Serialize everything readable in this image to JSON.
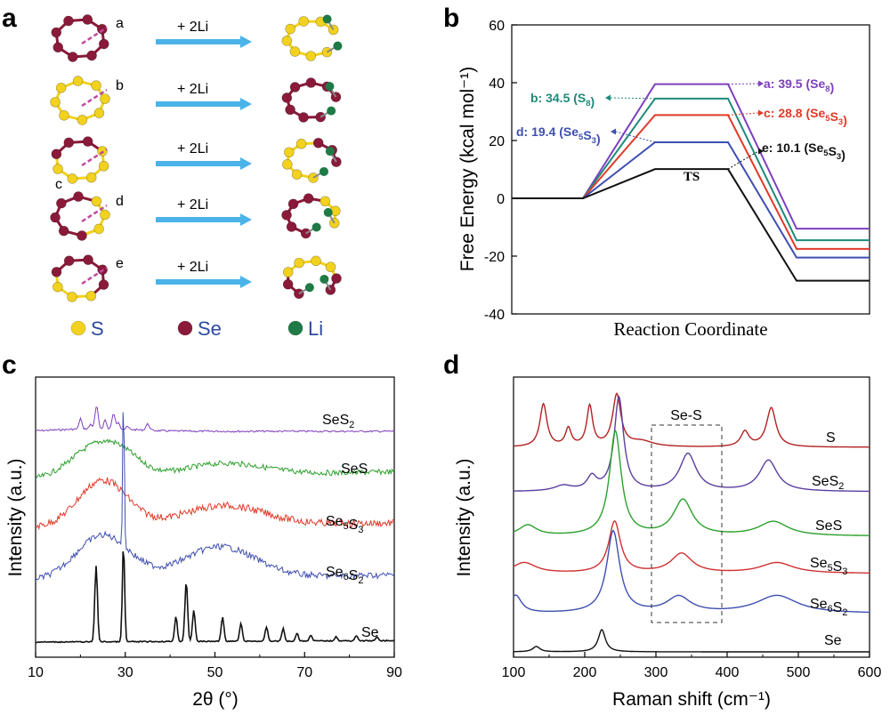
{
  "panels": {
    "a": {
      "label": "a",
      "reaction": "+ 2Li",
      "rows": [
        "a",
        "b",
        "c",
        "d",
        "e"
      ],
      "legend": [
        {
          "symbol": "S",
          "color": "#f2d21e"
        },
        {
          "symbol": "Se",
          "color": "#8b1a3a"
        },
        {
          "symbol": "Li",
          "color": "#1e7a46"
        }
      ]
    },
    "b": {
      "label": "b"
    },
    "c": {
      "label": "c"
    },
    "d": {
      "label": "d"
    }
  },
  "chart_data": [
    {
      "panel": "b",
      "type": "line",
      "xlabel": "Reaction Coordinate",
      "ylabel": "Free Energy (kcal mol⁻¹)",
      "ylim": [
        -40,
        60
      ],
      "yticks": [
        -40,
        -20,
        0,
        20,
        40,
        60
      ],
      "ts_label": "TS",
      "series": [
        {
          "name": "a",
          "color": "#7d3fbf",
          "ts": 39.5,
          "final": -10.5,
          "label_main": "a: 39.5 (Se",
          "label_sub": "8",
          "label_end": ")"
        },
        {
          "name": "b",
          "color": "#1f8a7a",
          "ts": 34.5,
          "final": -14.5,
          "label_main": "b: 34.5 (S",
          "label_sub": "8",
          "label_end": ")"
        },
        {
          "name": "c",
          "color": "#e03a2a",
          "ts": 28.8,
          "final": -17.5,
          "label_main": "c: 28.8 (Se",
          "label_sub": "5",
          "label_mid": "S",
          "label_sub2": "3",
          "label_end": ")"
        },
        {
          "name": "d",
          "color": "#3f4fb0",
          "ts": 19.4,
          "final": -20.5,
          "label_main": "d: 19.4 (Se",
          "label_sub": "5",
          "label_mid": "S",
          "label_sub2": "3",
          "label_end": ")"
        },
        {
          "name": "e",
          "color": "#111111",
          "ts": 10.1,
          "final": -28.5,
          "label_main": "e: 10.1 (Se",
          "label_sub": "5",
          "label_mid": "S",
          "label_sub2": "3",
          "label_end": ")"
        }
      ]
    },
    {
      "panel": "c",
      "type": "line",
      "xlabel": "2θ (°)",
      "ylabel": "Intensity (a.u.)",
      "xlim": [
        10,
        90
      ],
      "xticks": [
        10,
        30,
        50,
        70,
        90
      ],
      "series": [
        {
          "name": "SeS",
          "sub": "2",
          "color": "#7d3fbf"
        },
        {
          "name": "SeS",
          "sub": "",
          "color": "#2ca02c"
        },
        {
          "name": "Se",
          "sub": "5",
          "mid": "S",
          "sub2": "3",
          "color": "#e03a2a"
        },
        {
          "name": "Se",
          "sub": "6",
          "mid": "S",
          "sub2": "2",
          "color": "#3f4fb0"
        },
        {
          "name": "Se",
          "sub": "",
          "color": "#111111"
        }
      ]
    },
    {
      "panel": "d",
      "type": "line",
      "xlabel": "Raman shift (cm⁻¹)",
      "ylabel": "Intensity (a.u.)",
      "xlim": [
        100,
        600
      ],
      "xticks": [
        100,
        200,
        300,
        400,
        500,
        600
      ],
      "box_label": "Se-S",
      "series": [
        {
          "name": "S",
          "sub": "",
          "color": "#b22222"
        },
        {
          "name": "SeS",
          "sub": "2",
          "color": "#5a3fa0"
        },
        {
          "name": "SeS",
          "sub": "",
          "color": "#2ca02c"
        },
        {
          "name": "Se",
          "sub": "5",
          "mid": "S",
          "sub2": "3",
          "color": "#d03030"
        },
        {
          "name": "Se",
          "sub": "6",
          "mid": "S",
          "sub2": "2",
          "color": "#3f4fb0"
        },
        {
          "name": "Se",
          "sub": "",
          "color": "#111111"
        }
      ]
    }
  ]
}
